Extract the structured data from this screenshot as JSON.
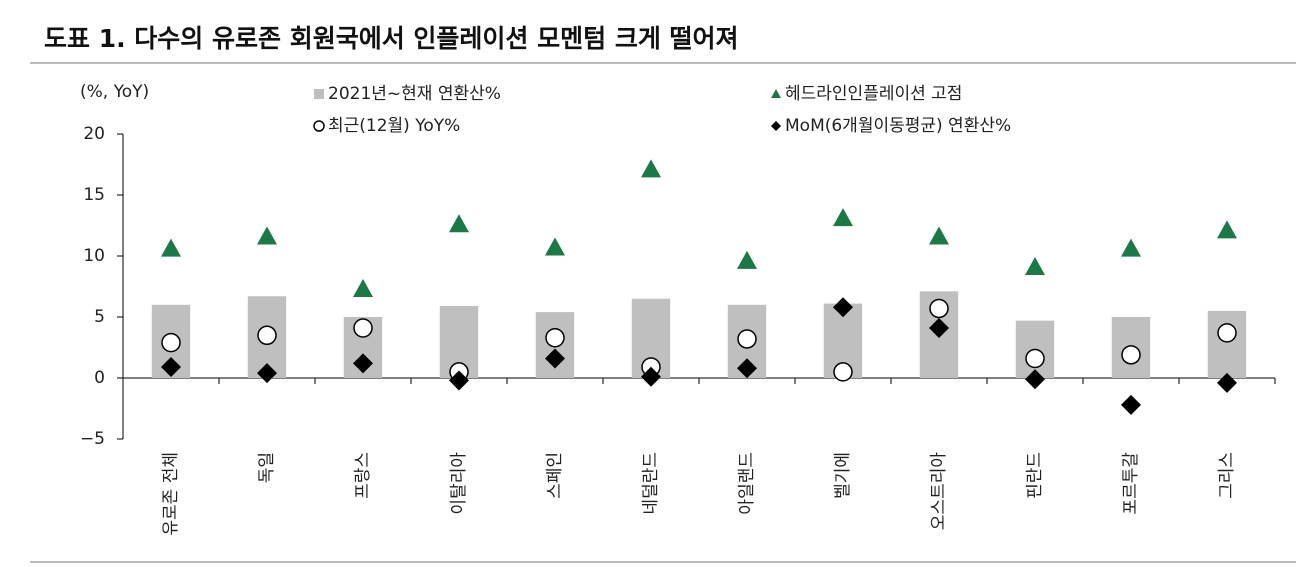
{
  "chart_data": {
    "type": "bar",
    "title": "도표 1. 다수의 유로존 회원국에서 인플레이션 모멘텀 크게 떨어져",
    "y_axis_label": "(%, YoY)",
    "categories": [
      "유로존 전체",
      "독일",
      "프랑스",
      "이탈리아",
      "스페인",
      "네덜란드",
      "아일랜드",
      "벨기에",
      "오스트리아",
      "핀란드",
      "포르투갈",
      "그리스"
    ],
    "ylim": [
      -5,
      20
    ],
    "yticks": [
      {
        "value": -5,
        "label": "−5"
      },
      0,
      5,
      10,
      15,
      20
    ],
    "series": [
      {
        "name": "2021년~현재 연환산%",
        "type": "bar",
        "marker": "square",
        "color": "#bfbfbf",
        "values": [
          6.0,
          6.7,
          5.0,
          5.9,
          5.4,
          6.5,
          6.0,
          6.1,
          7.1,
          4.7,
          5.0,
          5.5
        ]
      },
      {
        "name": "최근(12월) YoY%",
        "type": "scatter",
        "marker": "circle",
        "color": "#000000",
        "values": [
          2.9,
          3.5,
          4.1,
          0.5,
          3.3,
          0.9,
          3.2,
          0.5,
          5.7,
          1.6,
          1.9,
          3.7
        ]
      },
      {
        "name": "헤드라인인플레이션 고점",
        "type": "scatter",
        "marker": "triangle",
        "color": "#1a7a45",
        "values": [
          10.6,
          11.6,
          7.3,
          12.6,
          10.7,
          17.1,
          9.6,
          13.1,
          11.6,
          9.1,
          10.6,
          12.1
        ]
      },
      {
        "name": "MoM(6개월이동평균) 연환산%",
        "type": "scatter",
        "marker": "diamond",
        "color": "#000000",
        "values": [
          0.9,
          0.4,
          1.2,
          -0.2,
          1.6,
          0.1,
          0.8,
          5.8,
          4.1,
          -0.1,
          -2.2,
          -0.4
        ]
      }
    ]
  }
}
